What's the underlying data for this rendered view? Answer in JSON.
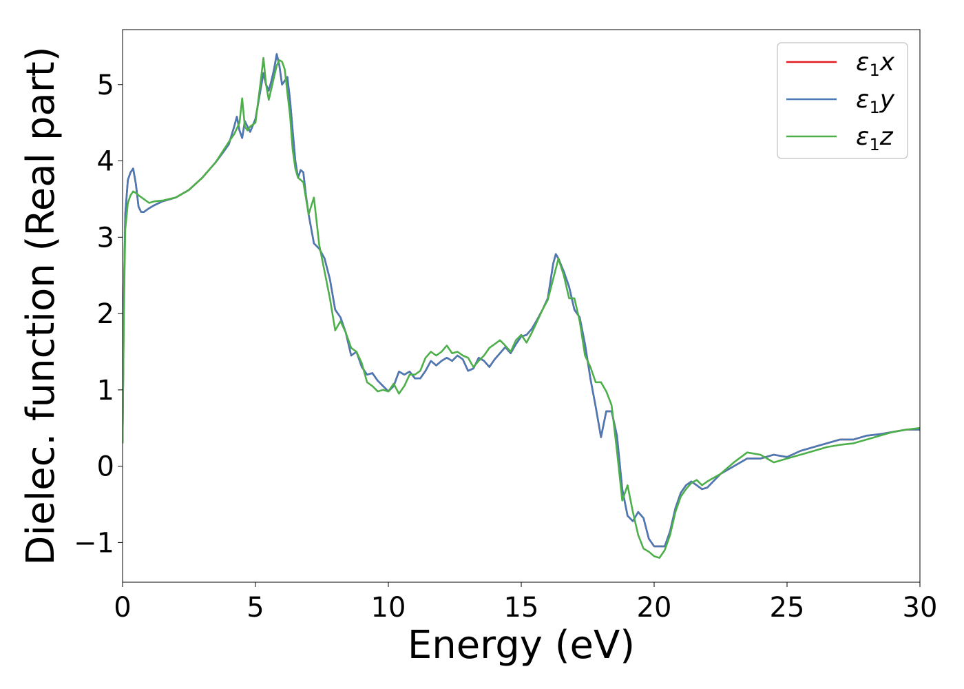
{
  "chart_data": {
    "type": "line",
    "xlabel": "Energy (eV)",
    "ylabel": "Dielec. function (Real part)",
    "xlim": [
      0,
      30
    ],
    "ylim": [
      -1.52,
      5.72
    ],
    "xticks": [
      0,
      5,
      10,
      15,
      20,
      25,
      30
    ],
    "yticks": [
      -1,
      0,
      1,
      2,
      3,
      4,
      5
    ],
    "xtick_labels": [
      "0",
      "5",
      "10",
      "15",
      "20",
      "25",
      "30"
    ],
    "ytick_labels": [
      "−1",
      "0",
      "1",
      "2",
      "3",
      "4",
      "5"
    ],
    "grid": false,
    "legend_position": "top-right",
    "series": [
      {
        "name": "ε₁x",
        "legend_main": "ε",
        "legend_sub": "1",
        "legend_var": "x",
        "color": "#e41a1c",
        "x": [
          0.0,
          0.05,
          0.1,
          0.2,
          0.3,
          0.4,
          0.5,
          0.6,
          0.7,
          0.8,
          1.0,
          1.2,
          1.5,
          2.0,
          2.5,
          3.0,
          3.5,
          3.8,
          4.0,
          4.2,
          4.3,
          4.4,
          4.5,
          4.6,
          4.7,
          4.8,
          5.0,
          5.2,
          5.3,
          5.4,
          5.5,
          5.6,
          5.7,
          5.8,
          5.9,
          6.0,
          6.1,
          6.2,
          6.3,
          6.4,
          6.5,
          6.6,
          6.7,
          6.8,
          6.9,
          7.0,
          7.2,
          7.4,
          7.6,
          7.8,
          8.0,
          8.2,
          8.4,
          8.6,
          8.8,
          9.0,
          9.2,
          9.4,
          9.6,
          9.8,
          10.0,
          10.2,
          10.4,
          10.6,
          10.8,
          11.0,
          11.2,
          11.4,
          11.6,
          11.8,
          12.0,
          12.2,
          12.4,
          12.6,
          12.8,
          13.0,
          13.2,
          13.4,
          13.6,
          13.8,
          14.0,
          14.2,
          14.4,
          14.6,
          14.8,
          15.0,
          15.2,
          15.4,
          15.6,
          15.8,
          16.0,
          16.2,
          16.3,
          16.4,
          16.6,
          16.8,
          17.0,
          17.2,
          17.4,
          17.6,
          17.8,
          18.0,
          18.2,
          18.4,
          18.6,
          18.8,
          19.0,
          19.2,
          19.4,
          19.6,
          19.8,
          20.0,
          20.2,
          20.4,
          20.6,
          20.8,
          21.0,
          21.2,
          21.4,
          21.6,
          21.8,
          22.0,
          22.5,
          23.0,
          23.5,
          24.0,
          24.5,
          25.0,
          25.5,
          26.0,
          26.5,
          27.0,
          27.5,
          28.0,
          28.5,
          29.0,
          29.5,
          30.0
        ],
        "y": [
          0.3,
          2.2,
          3.3,
          3.75,
          3.85,
          3.9,
          3.7,
          3.4,
          3.33,
          3.33,
          3.38,
          3.42,
          3.47,
          3.52,
          3.62,
          3.78,
          3.98,
          4.12,
          4.22,
          4.45,
          4.58,
          4.4,
          4.3,
          4.52,
          4.45,
          4.38,
          4.55,
          4.95,
          5.15,
          5.0,
          4.92,
          5.05,
          5.2,
          5.4,
          5.25,
          5.0,
          5.05,
          5.1,
          4.8,
          4.4,
          4.0,
          3.78,
          3.88,
          3.85,
          3.55,
          3.3,
          2.92,
          2.85,
          2.72,
          2.45,
          2.05,
          1.95,
          1.75,
          1.45,
          1.5,
          1.3,
          1.2,
          1.22,
          1.12,
          1.05,
          0.98,
          1.05,
          1.24,
          1.2,
          1.24,
          1.15,
          1.15,
          1.25,
          1.38,
          1.32,
          1.38,
          1.42,
          1.38,
          1.45,
          1.4,
          1.25,
          1.28,
          1.42,
          1.38,
          1.3,
          1.4,
          1.48,
          1.56,
          1.48,
          1.6,
          1.7,
          1.72,
          1.8,
          1.92,
          2.05,
          2.2,
          2.65,
          2.78,
          2.72,
          2.55,
          2.35,
          2.05,
          1.95,
          1.6,
          1.15,
          0.78,
          0.38,
          0.72,
          0.72,
          0.4,
          -0.3,
          -0.65,
          -0.72,
          -0.6,
          -0.68,
          -0.95,
          -1.05,
          -1.05,
          -1.05,
          -0.85,
          -0.55,
          -0.35,
          -0.25,
          -0.2,
          -0.25,
          -0.3,
          -0.28,
          -0.1,
          0.0,
          0.1,
          0.1,
          0.15,
          0.12,
          0.2,
          0.25,
          0.3,
          0.35,
          0.35,
          0.4,
          0.42,
          0.45,
          0.48,
          0.48
        ]
      },
      {
        "name": "ε₁y",
        "legend_main": "ε",
        "legend_sub": "1",
        "legend_var": "y",
        "color": "#4a7ab5",
        "x": [
          0.0,
          0.05,
          0.1,
          0.2,
          0.3,
          0.4,
          0.5,
          0.6,
          0.7,
          0.8,
          1.0,
          1.2,
          1.5,
          2.0,
          2.5,
          3.0,
          3.5,
          3.8,
          4.0,
          4.2,
          4.3,
          4.4,
          4.5,
          4.6,
          4.7,
          4.8,
          5.0,
          5.2,
          5.3,
          5.4,
          5.5,
          5.6,
          5.7,
          5.8,
          5.9,
          6.0,
          6.1,
          6.2,
          6.3,
          6.4,
          6.5,
          6.6,
          6.7,
          6.8,
          6.9,
          7.0,
          7.2,
          7.4,
          7.6,
          7.8,
          8.0,
          8.2,
          8.4,
          8.6,
          8.8,
          9.0,
          9.2,
          9.4,
          9.6,
          9.8,
          10.0,
          10.2,
          10.4,
          10.6,
          10.8,
          11.0,
          11.2,
          11.4,
          11.6,
          11.8,
          12.0,
          12.2,
          12.4,
          12.6,
          12.8,
          13.0,
          13.2,
          13.4,
          13.6,
          13.8,
          14.0,
          14.2,
          14.4,
          14.6,
          14.8,
          15.0,
          15.2,
          15.4,
          15.6,
          15.8,
          16.0,
          16.2,
          16.3,
          16.4,
          16.6,
          16.8,
          17.0,
          17.2,
          17.4,
          17.6,
          17.8,
          18.0,
          18.2,
          18.4,
          18.6,
          18.8,
          19.0,
          19.2,
          19.4,
          19.6,
          19.8,
          20.0,
          20.2,
          20.4,
          20.6,
          20.8,
          21.0,
          21.2,
          21.4,
          21.6,
          21.8,
          22.0,
          22.5,
          23.0,
          23.5,
          24.0,
          24.5,
          25.0,
          25.5,
          26.0,
          26.5,
          27.0,
          27.5,
          28.0,
          28.5,
          29.0,
          29.5,
          30.0
        ],
        "y": [
          0.3,
          2.2,
          3.3,
          3.75,
          3.85,
          3.9,
          3.7,
          3.4,
          3.33,
          3.33,
          3.38,
          3.42,
          3.47,
          3.52,
          3.62,
          3.78,
          3.98,
          4.12,
          4.22,
          4.45,
          4.58,
          4.4,
          4.3,
          4.52,
          4.45,
          4.38,
          4.55,
          4.95,
          5.15,
          5.0,
          4.92,
          5.05,
          5.2,
          5.4,
          5.25,
          5.0,
          5.05,
          5.1,
          4.8,
          4.4,
          4.0,
          3.78,
          3.88,
          3.85,
          3.55,
          3.3,
          2.92,
          2.85,
          2.72,
          2.45,
          2.05,
          1.95,
          1.75,
          1.45,
          1.5,
          1.3,
          1.2,
          1.22,
          1.12,
          1.05,
          0.98,
          1.05,
          1.24,
          1.2,
          1.24,
          1.15,
          1.15,
          1.25,
          1.38,
          1.32,
          1.38,
          1.42,
          1.38,
          1.45,
          1.4,
          1.25,
          1.28,
          1.42,
          1.38,
          1.3,
          1.4,
          1.48,
          1.56,
          1.48,
          1.6,
          1.7,
          1.72,
          1.8,
          1.92,
          2.05,
          2.2,
          2.65,
          2.78,
          2.72,
          2.55,
          2.35,
          2.05,
          1.95,
          1.6,
          1.15,
          0.78,
          0.38,
          0.72,
          0.72,
          0.4,
          -0.3,
          -0.65,
          -0.72,
          -0.6,
          -0.68,
          -0.95,
          -1.05,
          -1.05,
          -1.05,
          -0.85,
          -0.55,
          -0.35,
          -0.25,
          -0.2,
          -0.25,
          -0.3,
          -0.28,
          -0.1,
          0.0,
          0.1,
          0.1,
          0.15,
          0.12,
          0.2,
          0.25,
          0.3,
          0.35,
          0.35,
          0.4,
          0.42,
          0.45,
          0.48,
          0.48
        ]
      },
      {
        "name": "ε₁z",
        "legend_main": "ε",
        "legend_sub": "1",
        "legend_var": "z",
        "color": "#4daf4a",
        "x": [
          0.0,
          0.05,
          0.1,
          0.2,
          0.3,
          0.4,
          0.5,
          0.6,
          0.8,
          1.0,
          1.2,
          1.5,
          2.0,
          2.5,
          3.0,
          3.5,
          4.0,
          4.2,
          4.4,
          4.5,
          4.6,
          4.7,
          4.8,
          5.0,
          5.2,
          5.3,
          5.4,
          5.5,
          5.6,
          5.7,
          5.8,
          5.9,
          6.0,
          6.1,
          6.2,
          6.3,
          6.4,
          6.5,
          6.6,
          6.8,
          7.0,
          7.2,
          7.4,
          7.6,
          7.8,
          8.0,
          8.2,
          8.4,
          8.6,
          8.8,
          9.0,
          9.2,
          9.4,
          9.6,
          9.8,
          10.0,
          10.2,
          10.4,
          10.6,
          10.8,
          11.0,
          11.2,
          11.4,
          11.6,
          11.8,
          12.0,
          12.2,
          12.4,
          12.6,
          12.8,
          13.0,
          13.2,
          13.4,
          13.6,
          13.8,
          14.0,
          14.2,
          14.4,
          14.6,
          14.8,
          15.0,
          15.2,
          15.4,
          15.6,
          15.8,
          16.0,
          16.2,
          16.4,
          16.6,
          16.8,
          17.0,
          17.2,
          17.4,
          17.6,
          17.8,
          18.0,
          18.2,
          18.4,
          18.6,
          18.8,
          19.0,
          19.2,
          19.4,
          19.6,
          19.8,
          20.0,
          20.2,
          20.4,
          20.6,
          20.8,
          21.0,
          21.2,
          21.4,
          21.6,
          21.8,
          22.0,
          22.5,
          23.0,
          23.5,
          24.0,
          24.5,
          25.0,
          25.5,
          26.0,
          26.5,
          27.0,
          27.5,
          28.0,
          28.5,
          29.0,
          29.5,
          30.0
        ],
        "y": [
          0.3,
          2.0,
          3.1,
          3.45,
          3.55,
          3.6,
          3.58,
          3.55,
          3.5,
          3.45,
          3.47,
          3.48,
          3.52,
          3.62,
          3.78,
          3.98,
          4.25,
          4.35,
          4.5,
          4.82,
          4.45,
          4.4,
          4.45,
          4.5,
          5.05,
          5.35,
          5.0,
          4.8,
          4.95,
          5.1,
          5.25,
          5.32,
          5.3,
          5.2,
          4.9,
          4.6,
          4.15,
          3.9,
          3.78,
          3.72,
          3.3,
          3.52,
          2.9,
          2.55,
          2.2,
          1.78,
          1.9,
          1.75,
          1.55,
          1.5,
          1.35,
          1.1,
          1.05,
          0.98,
          1.0,
          0.98,
          1.08,
          0.95,
          1.05,
          1.2,
          1.2,
          1.25,
          1.42,
          1.5,
          1.45,
          1.5,
          1.58,
          1.48,
          1.5,
          1.45,
          1.42,
          1.3,
          1.38,
          1.45,
          1.55,
          1.6,
          1.65,
          1.58,
          1.5,
          1.65,
          1.72,
          1.62,
          1.75,
          1.9,
          2.05,
          2.18,
          2.45,
          2.72,
          2.5,
          2.2,
          2.2,
          1.9,
          1.45,
          1.3,
          1.1,
          1.1,
          0.98,
          0.8,
          0.2,
          -0.45,
          -0.25,
          -0.6,
          -0.9,
          -1.08,
          -1.12,
          -1.18,
          -1.2,
          -1.1,
          -0.9,
          -0.6,
          -0.4,
          -0.3,
          -0.22,
          -0.18,
          -0.25,
          -0.2,
          -0.1,
          0.05,
          0.18,
          0.15,
          0.05,
          0.1,
          0.15,
          0.2,
          0.25,
          0.28,
          0.3,
          0.35,
          0.4,
          0.45,
          0.48,
          0.5
        ]
      }
    ]
  }
}
